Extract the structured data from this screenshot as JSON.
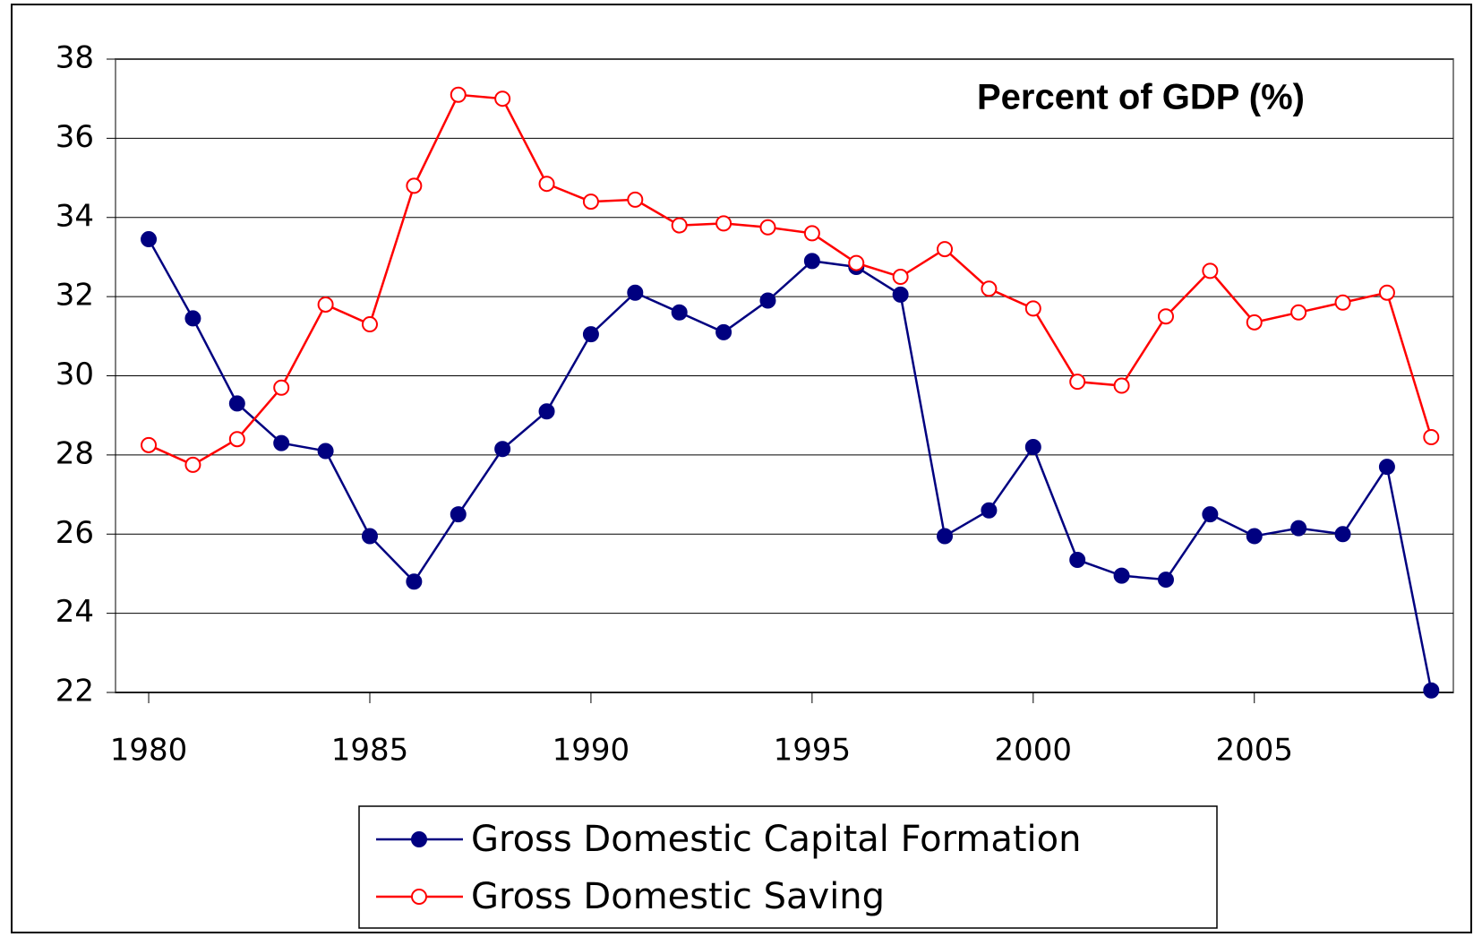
{
  "chart_data": {
    "type": "line",
    "title": "Percent of GDP (%)",
    "x": [
      1980,
      1981,
      1982,
      1983,
      1984,
      1985,
      1986,
      1987,
      1988,
      1989,
      1990,
      1991,
      1992,
      1993,
      1994,
      1995,
      1996,
      1997,
      1998,
      1999,
      2000,
      2001,
      2002,
      2003,
      2004,
      2005,
      2006,
      2007,
      2008,
      2009
    ],
    "series": [
      {
        "name": "Gross Domestic Capital Formation",
        "color": "#000080",
        "marker": "filled",
        "values": [
          33.45,
          31.45,
          29.3,
          28.3,
          28.1,
          25.95,
          24.8,
          26.5,
          28.15,
          29.1,
          31.05,
          32.1,
          31.6,
          31.1,
          31.9,
          32.9,
          32.75,
          32.05,
          25.95,
          26.6,
          28.2,
          25.35,
          24.95,
          24.85,
          26.5,
          25.95,
          26.15,
          26.0,
          27.7,
          22.05
        ]
      },
      {
        "name": "Gross Domestic Saving",
        "color": "#ff0000",
        "marker": "hollow",
        "values": [
          28.25,
          27.75,
          28.4,
          29.7,
          31.8,
          31.3,
          34.8,
          37.1,
          37.0,
          34.85,
          34.4,
          34.45,
          33.8,
          33.85,
          33.75,
          33.6,
          32.85,
          32.5,
          33.2,
          32.2,
          31.7,
          29.85,
          29.75,
          31.5,
          32.65,
          31.35,
          31.6,
          31.85,
          32.1,
          28.45
        ]
      }
    ],
    "xlim": [
      1979.25,
      2009.5
    ],
    "xticks": [
      1980,
      1985,
      1990,
      1995,
      2000,
      2005
    ],
    "ylim": [
      22,
      38
    ],
    "yticks": [
      22,
      24,
      26,
      28,
      30,
      32,
      34,
      36,
      38
    ],
    "grid": true
  }
}
